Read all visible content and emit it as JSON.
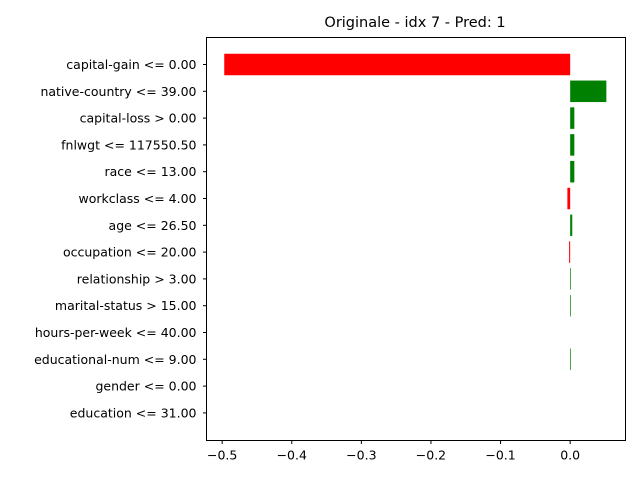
{
  "chart_data": {
    "type": "bar",
    "orientation": "horizontal",
    "title": "Originale - idx 7 - Pred: 1",
    "xlabel": "",
    "ylabel": "",
    "xlim": [
      -0.5225,
      0.0795
    ],
    "xticks": [
      -0.5,
      -0.4,
      -0.3,
      -0.2,
      -0.1,
      0.0
    ],
    "xtick_labels": [
      "−0.5",
      "−0.4",
      "−0.3",
      "−0.2",
      "−0.1",
      "0.0"
    ],
    "grid": false,
    "legend": "none",
    "colors": {
      "positive": "#008000",
      "negative": "#ff0000"
    },
    "categories": [
      "capital-gain <= 0.00",
      "native-country <= 39.00",
      "capital-loss > 0.00",
      "fnlwgt <= 117550.50",
      "race <= 13.00",
      "workclass <= 4.00",
      "age <= 26.50",
      "occupation <= 20.00",
      "relationship > 3.00",
      "marital-status > 15.00",
      "hours-per-week <= 40.00",
      "educational-num <= 9.00",
      "gender <= 0.00",
      "education <= 31.00"
    ],
    "values": [
      -0.497,
      0.052,
      0.006,
      0.006,
      0.006,
      -0.004,
      0.003,
      -0.0015,
      0.001,
      0.001,
      0.0,
      0.001,
      0.0,
      0.0
    ]
  }
}
